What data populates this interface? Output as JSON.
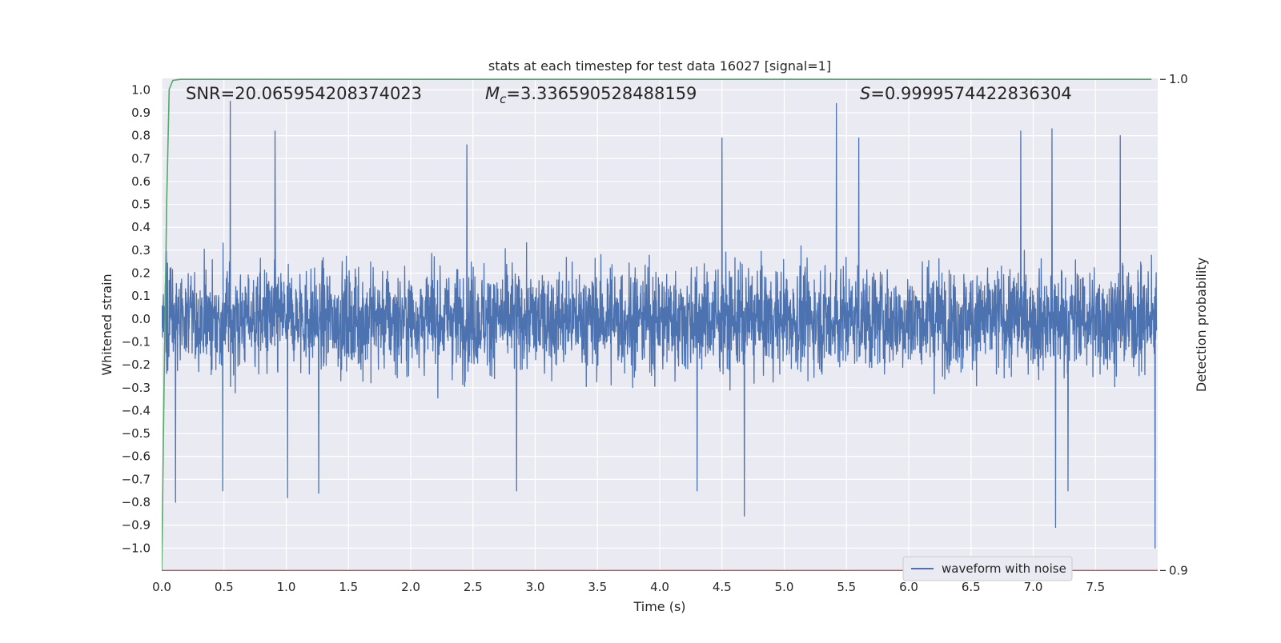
{
  "chart_data": {
    "type": "line",
    "title": "stats at each timestep for test data 16027 [signal=1]",
    "xlabel": "Time (s)",
    "ylabel": "Whitened strain",
    "ylabel_right": "Detection probability",
    "xlim": [
      0.0,
      8.0
    ],
    "ylim": [
      -1.1,
      1.05
    ],
    "ylim_right": [
      0.8999,
      1.0002
    ],
    "x_ticks": [
      "0.0",
      "0.5",
      "1.0",
      "1.5",
      "2.0",
      "2.5",
      "3.0",
      "3.5",
      "4.0",
      "4.5",
      "5.0",
      "5.5",
      "6.0",
      "6.5",
      "7.0",
      "7.5"
    ],
    "y_ticks": [
      "1.0",
      "0.9",
      "0.8",
      "0.7",
      "0.6",
      "0.5",
      "0.4",
      "0.3",
      "0.2",
      "0.1",
      "0.0",
      "-0.1",
      "-0.2",
      "-0.3",
      "-0.4",
      "-0.5",
      "-0.6",
      "-0.7",
      "-0.8",
      "-0.9",
      "-1.0"
    ],
    "y_ticks_right": [
      "1.0",
      "0.9"
    ],
    "grid": true,
    "legend_position": "bottom-right",
    "annotations": {
      "snr": "SNR=20.065954208374023",
      "mc_symbol": "M",
      "mc_sub": "c",
      "mc_value": "=3.336590528488159",
      "s_symbol": "S",
      "s_value": "=0.9999574422836304"
    },
    "series": [
      {
        "name": "waveform with noise",
        "color": "#4c72b0",
        "axis": "left",
        "x_range": [
          0.0,
          7.99
        ],
        "samples": 16000,
        "typical_envelope": [
          -0.5,
          0.5
        ],
        "peaks": [
          [
            0.55,
            0.95
          ],
          [
            0.91,
            0.82
          ],
          [
            2.45,
            0.76
          ],
          [
            4.5,
            0.79
          ],
          [
            5.42,
            0.94
          ],
          [
            5.6,
            0.79
          ],
          [
            6.9,
            0.82
          ],
          [
            7.15,
            0.83
          ],
          [
            7.7,
            0.8
          ]
        ],
        "troughs": [
          [
            0.11,
            -0.8
          ],
          [
            0.49,
            -0.75
          ],
          [
            1.01,
            -0.78
          ],
          [
            1.26,
            -0.76
          ],
          [
            2.85,
            -0.75
          ],
          [
            4.3,
            -0.75
          ],
          [
            4.68,
            -0.86
          ],
          [
            7.18,
            -0.91
          ],
          [
            7.28,
            -0.75
          ],
          [
            7.98,
            -1.0
          ]
        ]
      },
      {
        "name": "",
        "color": "#55a868",
        "axis": "right",
        "x": [
          0.0,
          0.02,
          0.04,
          0.06,
          0.09,
          0.15,
          0.3,
          7.95
        ],
        "y": [
          0.9,
          0.94,
          0.975,
          0.998,
          0.9998,
          1.0,
          1.0,
          1.0
        ]
      },
      {
        "name": "",
        "color": "#c44e52",
        "axis": "right",
        "x": [
          0.0,
          8.0
        ],
        "y": [
          0.9,
          0.9
        ]
      }
    ]
  }
}
